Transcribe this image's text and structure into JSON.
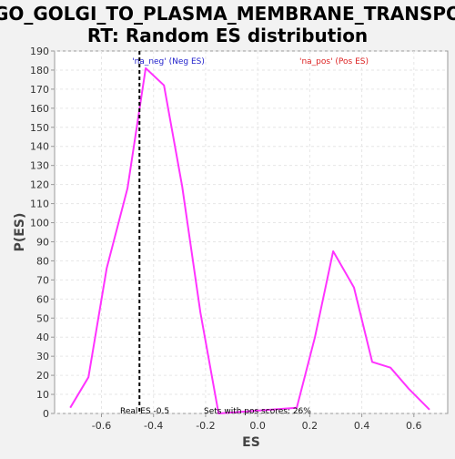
{
  "chart_data": {
    "type": "line",
    "title_lines": [
      "GO_GOLGI_TO_PLASMA_MEMBRANE_TRANSPO",
      "RT: Random ES distribution"
    ],
    "xlabel": "ES",
    "ylabel": "P(ES)",
    "xlim": [
      -0.78,
      0.73
    ],
    "ylim": [
      0,
      190
    ],
    "x_ticks": [
      -0.6,
      -0.4,
      -0.2,
      0.0,
      0.2,
      0.4,
      0.6
    ],
    "x_tick_labels": [
      "-0.6",
      "-0.4",
      "-0.2",
      "0.0",
      "0.2",
      "0.4",
      "0.6"
    ],
    "y_ticks": [
      0,
      10,
      20,
      30,
      40,
      50,
      60,
      70,
      80,
      90,
      100,
      110,
      120,
      130,
      140,
      150,
      160,
      170,
      180,
      190
    ],
    "y_tick_labels": [
      "0",
      "10",
      "20",
      "30",
      "40",
      "50",
      "60",
      "70",
      "80",
      "90",
      "100",
      "110",
      "120",
      "130",
      "140",
      "150",
      "160",
      "170",
      "180",
      "190"
    ],
    "grid": true,
    "series": [
      {
        "color": "#ff33ff",
        "x": [
          -0.72,
          -0.65,
          -0.58,
          -0.5,
          -0.43,
          -0.36,
          -0.29,
          -0.22,
          -0.15,
          0.15,
          0.22,
          0.29,
          0.37,
          0.44,
          0.51,
          0.58,
          0.66
        ],
        "y": [
          3,
          19,
          76,
          118,
          181,
          172,
          119,
          53,
          0,
          3,
          40,
          85,
          66,
          27,
          24,
          13,
          2
        ]
      }
    ],
    "real_es": -0.454,
    "real_es_line_color": "#000000",
    "annotations": {
      "neg_label": "'na_neg' (Neg ES)",
      "neg_color": "#2222cc",
      "pos_label": "'na_pos' (Pos ES)",
      "pos_color": "#dd2222",
      "real_es_text": "Real ES -0.5",
      "pos_scores_text": "Sets with pos scores: 26%"
    }
  }
}
